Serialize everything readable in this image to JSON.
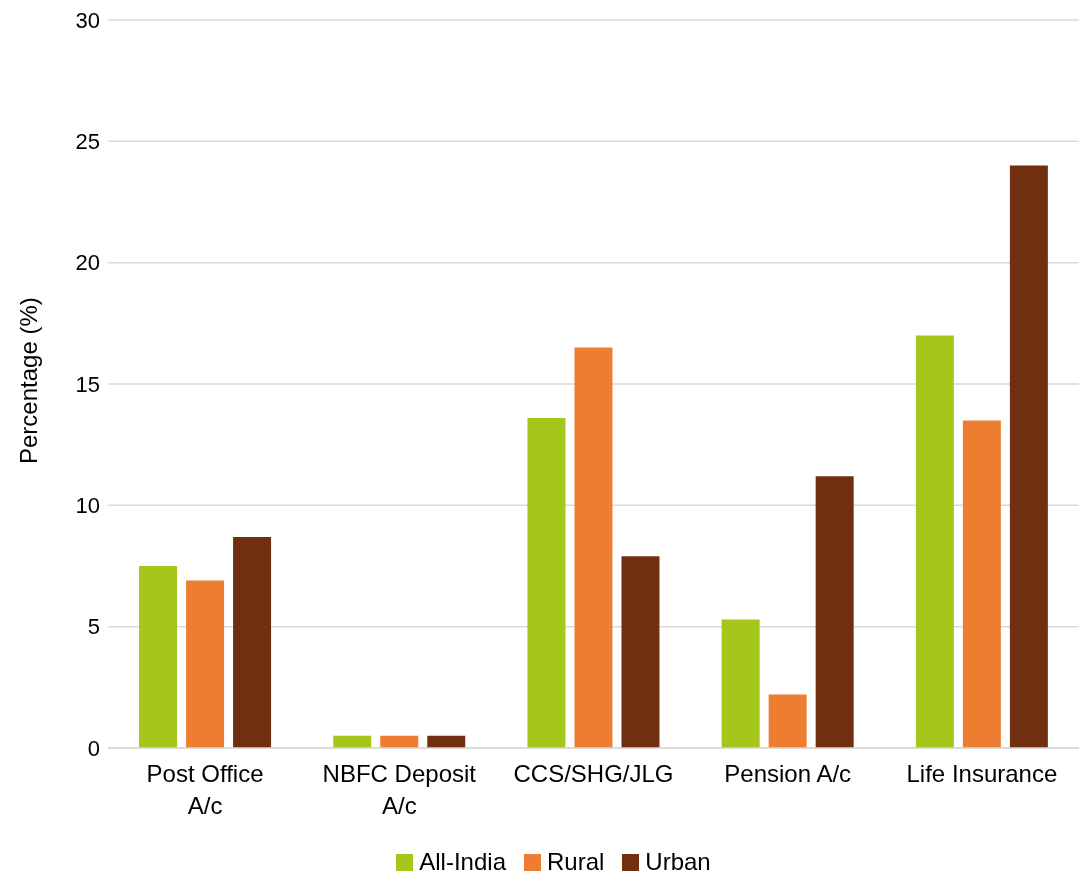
{
  "chart_data": {
    "type": "bar",
    "ylabel": "Percentage (%)",
    "categories": [
      "Post Office A/c",
      "NBFC Deposit A/c",
      "CCS/SHG/JLG",
      "Pension A/c",
      "Life Insurance"
    ],
    "series": [
      {
        "name": "All-India",
        "color": "#a5c61a",
        "values": [
          7.5,
          0.5,
          13.6,
          5.3,
          17.0
        ]
      },
      {
        "name": "Rural",
        "color": "#ed7d31",
        "values": [
          6.9,
          0.5,
          16.5,
          2.2,
          13.5
        ]
      },
      {
        "name": "Urban",
        "color": "#70300f",
        "values": [
          8.7,
          0.5,
          7.9,
          11.2,
          24.0
        ]
      }
    ],
    "ylim": [
      0,
      30
    ],
    "yticks": [
      0,
      5,
      10,
      15,
      20,
      25,
      30
    ],
    "grid": "y",
    "legend": "bottom"
  }
}
